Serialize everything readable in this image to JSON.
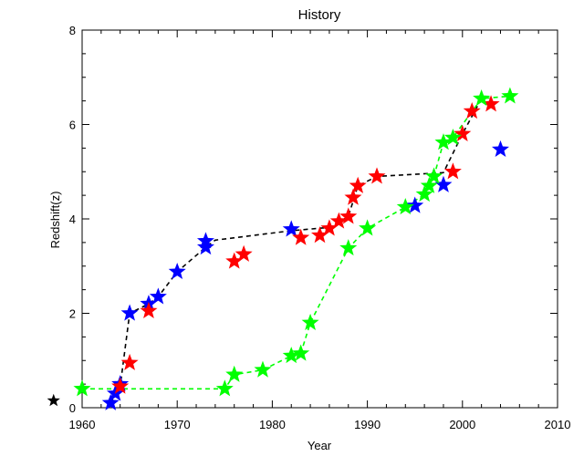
{
  "chart_data": {
    "type": "scatter",
    "title": "History",
    "xlabel": "Year",
    "ylabel": "Redshift(z)",
    "xlim": [
      1960,
      2010
    ],
    "ylim": [
      0,
      8
    ],
    "x_ticks": [
      "1960",
      "1970",
      "1980",
      "1990",
      "2000",
      "2010"
    ],
    "y_ticks": [
      "0",
      "2",
      "4",
      "6",
      "8"
    ],
    "grid": false,
    "legend": "none",
    "series": [
      {
        "color": "#0000ff",
        "marker": "star",
        "points": [
          [
            1963,
            0.1
          ],
          [
            1963.5,
            0.3
          ],
          [
            1964,
            0.5
          ],
          [
            1965,
            2.0
          ],
          [
            1967,
            2.2
          ],
          [
            1968,
            2.35
          ],
          [
            1970,
            2.88
          ],
          [
            1973,
            3.4
          ],
          [
            1973,
            3.53
          ],
          [
            1982,
            3.78
          ],
          [
            1995,
            4.28
          ],
          [
            1998,
            4.72
          ],
          [
            2004,
            5.47
          ]
        ]
      },
      {
        "color": "#ff0000",
        "marker": "star",
        "points": [
          [
            1964,
            0.45
          ],
          [
            1965,
            0.95
          ],
          [
            1967,
            2.05
          ],
          [
            1976,
            3.1
          ],
          [
            1977,
            3.25
          ],
          [
            1983,
            3.6
          ],
          [
            1985,
            3.65
          ],
          [
            1986,
            3.8
          ],
          [
            1987,
            3.95
          ],
          [
            1988,
            4.05
          ],
          [
            1988.5,
            4.45
          ],
          [
            1989,
            4.7
          ],
          [
            1991,
            4.9
          ],
          [
            1999,
            5.0
          ],
          [
            2000,
            5.8
          ],
          [
            2001,
            6.28
          ],
          [
            2003,
            6.43
          ]
        ]
      },
      {
        "color": "#00ff00",
        "marker": "star",
        "points": [
          [
            1960,
            0.4
          ],
          [
            1975,
            0.4
          ],
          [
            1976,
            0.7
          ],
          [
            1979,
            0.8
          ],
          [
            1982,
            1.1
          ],
          [
            1983,
            1.15
          ],
          [
            1984,
            1.8
          ],
          [
            1988,
            3.38
          ],
          [
            1990,
            3.8
          ],
          [
            1994,
            4.25
          ],
          [
            1996,
            4.52
          ],
          [
            1996.5,
            4.7
          ],
          [
            1997,
            4.9
          ],
          [
            1998,
            5.62
          ],
          [
            1999,
            5.72
          ],
          [
            2002,
            6.55
          ],
          [
            2005,
            6.6
          ]
        ]
      }
    ],
    "trend_lines": [
      {
        "color": "#000000",
        "style": "dashed",
        "points": [
          [
            1963,
            0.1
          ],
          [
            1964,
            0.45
          ],
          [
            1965,
            2.0
          ],
          [
            1967,
            2.2
          ],
          [
            1968,
            2.35
          ],
          [
            1970,
            2.88
          ],
          [
            1973,
            3.4
          ],
          [
            1974,
            3.55
          ],
          [
            1982,
            3.75
          ],
          [
            1986,
            3.82
          ],
          [
            1988,
            4.05
          ],
          [
            1989,
            4.7
          ],
          [
            1991,
            4.9
          ],
          [
            1998,
            4.98
          ],
          [
            2000,
            5.8
          ],
          [
            2002,
            6.55
          ]
        ]
      },
      {
        "color": "#00ff00",
        "style": "dashed",
        "points": [
          [
            1960,
            0.4
          ],
          [
            1975,
            0.4
          ],
          [
            1976,
            0.7
          ],
          [
            1979,
            0.8
          ],
          [
            1982,
            1.1
          ],
          [
            1983,
            1.15
          ],
          [
            1984,
            1.8
          ],
          [
            1988,
            3.38
          ],
          [
            1990,
            3.8
          ],
          [
            1994,
            4.25
          ],
          [
            1996,
            4.52
          ],
          [
            1997,
            4.9
          ],
          [
            1998,
            5.62
          ],
          [
            1999,
            5.72
          ],
          [
            2002,
            6.55
          ],
          [
            2005,
            6.6
          ]
        ]
      }
    ],
    "outside_marker": {
      "color": "#000000",
      "marker": "star",
      "x": 1957,
      "y": 0.15
    }
  }
}
